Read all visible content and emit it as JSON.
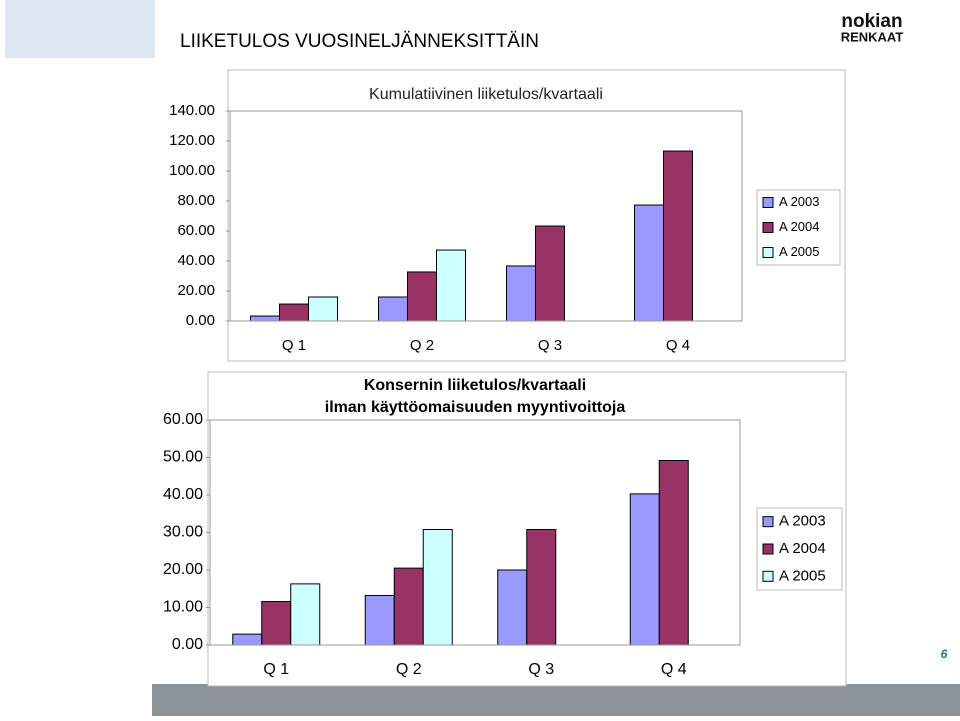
{
  "slide": {
    "title": "LIIKETULOS VUOSINELJÄNNEKSITTÄIN",
    "logo": [
      "nokian",
      "RENKAAT"
    ],
    "page_number": "6"
  },
  "chart_data": [
    {
      "type": "bar",
      "title": "Kumulatiivinen liiketulos/kvartaali",
      "categories": [
        "Q 1",
        "Q 2",
        "Q 3",
        "Q 4"
      ],
      "series": [
        {
          "name": "A 2003",
          "color": "#9999ff",
          "values": [
            3.3,
            16,
            36.7,
            77.3
          ]
        },
        {
          "name": "A 2004",
          "color": "#993366",
          "values": [
            11.3,
            32.7,
            63.3,
            113.3
          ]
        },
        {
          "name": "A 2005",
          "color": "#ccffff",
          "values": [
            16,
            47.3,
            null,
            null
          ]
        }
      ],
      "ylim": [
        0,
        140
      ],
      "yticks": [
        {
          "value": 0,
          "label": "0.00"
        },
        {
          "value": 20,
          "label": "20.00"
        },
        {
          "value": 40,
          "label": "40.00"
        },
        {
          "value": 60,
          "label": "60.00"
        },
        {
          "value": 80,
          "label": "80.00"
        },
        {
          "value": 100,
          "label": "100.00"
        },
        {
          "value": 120,
          "label": "120.00"
        },
        {
          "value": 140,
          "label": "140.00"
        }
      ],
      "legend": "right"
    },
    {
      "type": "bar",
      "title": "Konsernin liiketulos/kvartaali",
      "subtitle": "ilman käyttöomaisuuden myyntivoittoja",
      "categories": [
        "Q 1",
        "Q 2",
        "Q 3",
        "Q 4"
      ],
      "series": [
        {
          "name": "A 2003",
          "color": "#9999ff",
          "values": [
            2.9,
            13.2,
            20,
            40.3
          ]
        },
        {
          "name": "A 2004",
          "color": "#993366",
          "values": [
            11.6,
            20.5,
            30.8,
            49.2
          ]
        },
        {
          "name": "A 2005",
          "color": "#ccffff",
          "values": [
            16.3,
            30.8,
            null,
            null
          ]
        }
      ],
      "ylim": [
        0,
        60
      ],
      "yticks": [
        {
          "value": 0,
          "label": "0.00"
        },
        {
          "value": 10,
          "label": "10.00"
        },
        {
          "value": 20,
          "label": "20.00"
        },
        {
          "value": 30,
          "label": "30.00"
        },
        {
          "value": 40,
          "label": "40.00"
        },
        {
          "value": 50,
          "label": "50.00"
        },
        {
          "value": 60,
          "label": "60.00"
        }
      ],
      "legend": "right"
    }
  ]
}
